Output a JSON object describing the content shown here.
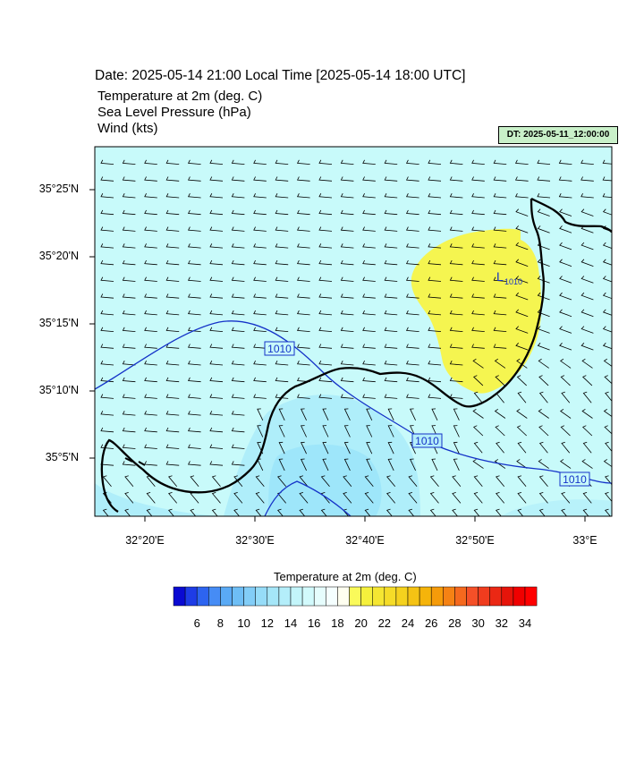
{
  "header": {
    "title": "Date: 2025-05-14  21:00 Local Time [2025-05-14  18:00 UTC]",
    "fields": [
      "Temperature at 2m   (deg. C)",
      "Sea Level Pressure   (hPa)",
      "Wind   (kts)"
    ],
    "dt_badge": "DT: 2025-05-11_12:00:00"
  },
  "map": {
    "y_ticks": [
      "35°25'N",
      "35°20'N",
      "35°15'N",
      "35°10'N",
      "35°5'N"
    ],
    "x_ticks": [
      "32°20'E",
      "32°30'E",
      "32°40'E",
      "32°50'E",
      "33°E"
    ],
    "isobar_labels": [
      "1010",
      "1010",
      "1010"
    ],
    "low_symbol": "L",
    "low_value": "1010",
    "colors": {
      "sea_temp": "#c8fafa",
      "warm_zone": "#f5f550",
      "cool_zone": "#9ee6fa",
      "isobar": "#1432c8",
      "coastline": "#000000",
      "wind_barb": "#000000"
    }
  },
  "colorbar": {
    "title": "Temperature at 2m  (deg. C)",
    "labels": [
      "6",
      "8",
      "10",
      "12",
      "14",
      "16",
      "18",
      "20",
      "22",
      "24",
      "26",
      "28",
      "30",
      "32",
      "34"
    ],
    "colors": [
      "#0a0ad2",
      "#1e3ce6",
      "#2d64f0",
      "#468cf5",
      "#5aaaf5",
      "#6ebef5",
      "#82cdf7",
      "#96dcf8",
      "#a5e6f8",
      "#b4eefa",
      "#c3f5fa",
      "#d2fafc",
      "#e6fdfd",
      "#f5ffff",
      "#fffff0",
      "#fafa5a",
      "#f5f03c",
      "#f5e632",
      "#f5dc28",
      "#f5d21e",
      "#f5c314",
      "#f5b40a",
      "#f59b0a",
      "#f58214",
      "#f5691e",
      "#f55028",
      "#f03c1e",
      "#eb2814",
      "#e6140a",
      "#f00000",
      "#ff0000"
    ]
  }
}
